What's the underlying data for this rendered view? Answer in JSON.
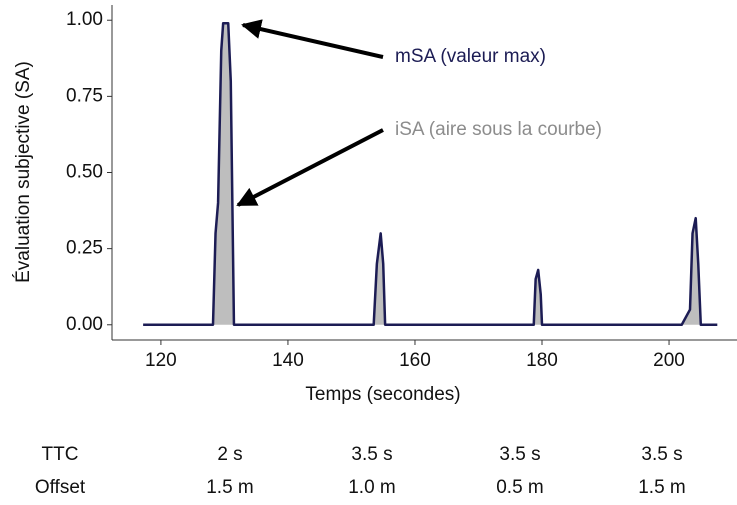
{
  "chart_data": {
    "type": "line",
    "x_label": "Temps (secondes)",
    "y_label": "Évaluation subjective (SA)",
    "x": [
      117.2,
      128.2,
      128.6,
      129,
      129.5,
      129.8,
      130.6,
      131,
      131.5,
      153.5,
      154,
      154.6,
      155,
      155.3,
      178.7,
      179,
      179.4,
      179.8,
      180,
      202,
      203.3,
      203.7,
      204.2,
      204.6,
      205,
      207.6
    ],
    "values": [
      0,
      0,
      0.3,
      0.4,
      0.9,
      0.99,
      0.99,
      0.8,
      0,
      0,
      0.2,
      0.3,
      0.2,
      0,
      0,
      0.15,
      0.18,
      0.1,
      0,
      0,
      0.05,
      0.3,
      0.35,
      0.2,
      0,
      0
    ],
    "color": "#1c1c54",
    "fill_color": "#bebebe",
    "xlim": [
      112.3,
      210.7
    ],
    "xticks": [
      120,
      140,
      160,
      180,
      200
    ],
    "ylim": [
      -0.05,
      1.05
    ],
    "yticks": [
      {
        "value": 0,
        "label": "0.00"
      },
      {
        "value": 0.25,
        "label": "0.25"
      },
      {
        "value": 0.5,
        "label": "0.50"
      },
      {
        "value": 0.75,
        "label": "0.75"
      },
      {
        "value": 1,
        "label": "1.00"
      }
    ],
    "annotations": [
      {
        "text": "mSA (valeur max)",
        "color": "#1c1c54"
      },
      {
        "text": "iSA (aire sous la courbe)",
        "color": "#8c8c8c"
      }
    ]
  },
  "table": {
    "rows": [
      [
        "TTC",
        "2 s",
        "3.5 s",
        "3.5 s",
        "3.5 s"
      ],
      [
        "Offset",
        "1.5 m",
        "1.0 m",
        "0.5 m",
        "1.5 m"
      ]
    ]
  }
}
